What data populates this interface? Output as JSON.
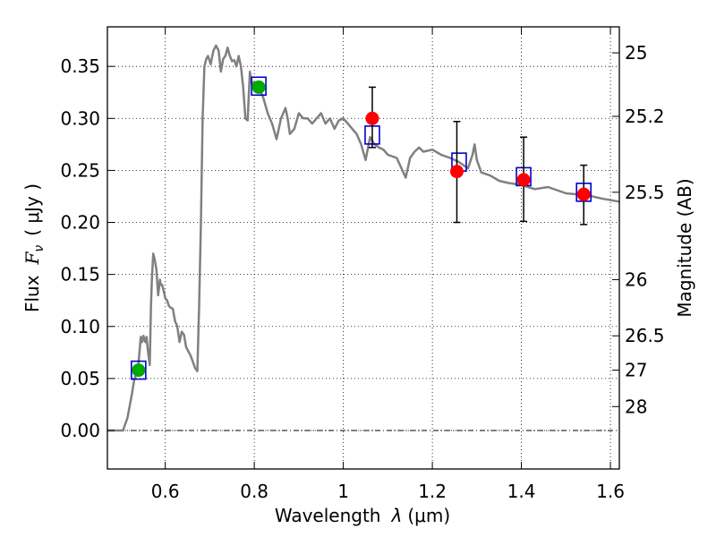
{
  "chart_data": {
    "type": "line",
    "xlabel": "Wavelength",
    "xlabel_symbol": "λ",
    "xlabel_unit": "(μm)",
    "ylabel": "Flux",
    "ylabel_symbol": "F",
    "ylabel_subscript": "ν",
    "ylabel_unit": "( μJy )",
    "ylabel_right": "Magnitude (AB)",
    "xlim": [
      0.47,
      1.62
    ],
    "ylim": [
      -0.037,
      0.388
    ],
    "grid": true,
    "x_ticks": [
      {
        "value": 0.6,
        "label": "0.6"
      },
      {
        "value": 0.8,
        "label": "0.8"
      },
      {
        "value": 1.0,
        "label": "1"
      },
      {
        "value": 1.2,
        "label": "1.2"
      },
      {
        "value": 1.4,
        "label": "1.4"
      },
      {
        "value": 1.6,
        "label": "1.6"
      }
    ],
    "y_ticks": [
      {
        "value": 0.0,
        "label": "0.00"
      },
      {
        "value": 0.05,
        "label": "0.05"
      },
      {
        "value": 0.1,
        "label": "0.10"
      },
      {
        "value": 0.15,
        "label": "0.15"
      },
      {
        "value": 0.2,
        "label": "0.20"
      },
      {
        "value": 0.25,
        "label": "0.25"
      },
      {
        "value": 0.3,
        "label": "0.30"
      },
      {
        "value": 0.35,
        "label": "0.35"
      }
    ],
    "right_ticks": [
      {
        "label": "25",
        "flux": 0.363
      },
      {
        "label": "25.2",
        "flux": 0.302
      },
      {
        "label": "25.5",
        "flux": 0.229
      },
      {
        "label": "26",
        "flux": 0.145
      },
      {
        "label": "26.5",
        "flux": 0.091
      },
      {
        "label": "27",
        "flux": 0.058
      },
      {
        "label": "28",
        "flux": 0.023
      }
    ],
    "model_spectrum": {
      "name": "model",
      "color": "#808080",
      "x": [
        0.47,
        0.505,
        0.515,
        0.525,
        0.53,
        0.535,
        0.54,
        0.545,
        0.548,
        0.551,
        0.555,
        0.558,
        0.56,
        0.565,
        0.568,
        0.57,
        0.573,
        0.576,
        0.58,
        0.584,
        0.588,
        0.59,
        0.593,
        0.597,
        0.6,
        0.604,
        0.608,
        0.612,
        0.617,
        0.622,
        0.627,
        0.632,
        0.637,
        0.642,
        0.647,
        0.652,
        0.657,
        0.662,
        0.667,
        0.672,
        0.676,
        0.68,
        0.684,
        0.688,
        0.692,
        0.696,
        0.702,
        0.708,
        0.714,
        0.72,
        0.725,
        0.73,
        0.735,
        0.74,
        0.745,
        0.75,
        0.755,
        0.76,
        0.765,
        0.77,
        0.775,
        0.78,
        0.785,
        0.79,
        0.795,
        0.8,
        0.81,
        0.82,
        0.83,
        0.84,
        0.85,
        0.86,
        0.87,
        0.875,
        0.88,
        0.89,
        0.9,
        0.91,
        0.92,
        0.93,
        0.94,
        0.95,
        0.96,
        0.97,
        0.98,
        0.99,
        1.0,
        1.01,
        1.02,
        1.03,
        1.04,
        1.05,
        1.06,
        1.07,
        1.08,
        1.09,
        1.1,
        1.12,
        1.14,
        1.15,
        1.16,
        1.17,
        1.18,
        1.2,
        1.22,
        1.24,
        1.26,
        1.28,
        1.29,
        1.295,
        1.3,
        1.31,
        1.33,
        1.35,
        1.37,
        1.4,
        1.43,
        1.46,
        1.5,
        1.55,
        1.58,
        1.62
      ],
      "y": [
        0.0,
        0.0,
        0.012,
        0.035,
        0.048,
        0.055,
        0.065,
        0.09,
        0.085,
        0.091,
        0.085,
        0.09,
        0.08,
        0.063,
        0.12,
        0.145,
        0.17,
        0.165,
        0.155,
        0.13,
        0.145,
        0.14,
        0.14,
        0.133,
        0.127,
        0.125,
        0.12,
        0.118,
        0.117,
        0.105,
        0.1,
        0.085,
        0.095,
        0.092,
        0.08,
        0.076,
        0.072,
        0.066,
        0.06,
        0.057,
        0.12,
        0.2,
        0.3,
        0.35,
        0.357,
        0.36,
        0.352,
        0.365,
        0.37,
        0.365,
        0.345,
        0.357,
        0.36,
        0.368,
        0.36,
        0.355,
        0.356,
        0.35,
        0.36,
        0.35,
        0.33,
        0.3,
        0.298,
        0.345,
        0.332,
        0.335,
        0.33,
        0.32,
        0.305,
        0.295,
        0.28,
        0.3,
        0.31,
        0.3,
        0.285,
        0.29,
        0.305,
        0.3,
        0.3,
        0.295,
        0.3,
        0.305,
        0.295,
        0.3,
        0.29,
        0.298,
        0.3,
        0.295,
        0.29,
        0.285,
        0.275,
        0.26,
        0.282,
        0.275,
        0.272,
        0.27,
        0.265,
        0.262,
        0.243,
        0.262,
        0.268,
        0.272,
        0.268,
        0.27,
        0.265,
        0.262,
        0.258,
        0.252,
        0.265,
        0.275,
        0.26,
        0.248,
        0.245,
        0.24,
        0.238,
        0.236,
        0.232,
        0.234,
        0.228,
        0.226,
        0.223,
        0.22
      ]
    },
    "green_points": {
      "name": "green markers",
      "color": "#00aa00",
      "x": [
        0.54,
        0.81
      ],
      "y": [
        0.058,
        0.33
      ]
    },
    "red_points": {
      "name": "red markers with error bars",
      "color": "#ff0000",
      "x": [
        1.065,
        1.255,
        1.405,
        1.54
      ],
      "y": [
        0.3,
        0.249,
        0.241,
        0.227
      ],
      "yerr_low": [
        0.028,
        0.049,
        0.04,
        0.029
      ],
      "yerr_high": [
        0.03,
        0.048,
        0.041,
        0.028
      ]
    },
    "blue_squares": {
      "name": "model photometry squares",
      "color": "#0000cc",
      "x": [
        0.54,
        0.81,
        1.065,
        1.26,
        1.405,
        1.54
      ],
      "y": [
        0.058,
        0.331,
        0.284,
        0.258,
        0.244,
        0.229
      ]
    }
  }
}
